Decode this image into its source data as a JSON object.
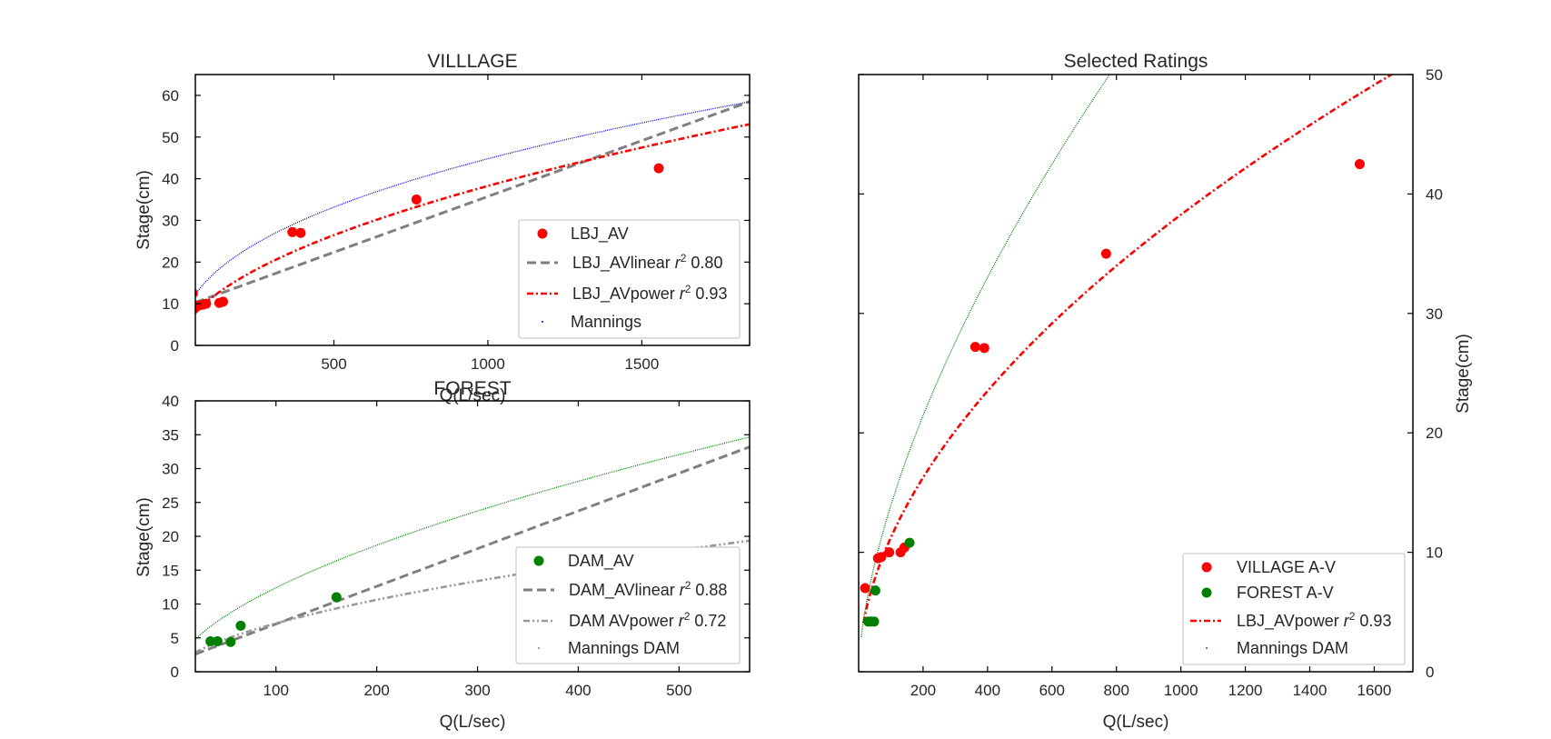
{
  "chart_data": [
    {
      "id": "village",
      "type": "scatter",
      "title": "VILLLAGE",
      "xlabel": "Q(L/sec)",
      "ylabel": "Stage(cm)",
      "xlim": [
        50,
        1850
      ],
      "ylim": [
        0,
        65
      ],
      "xticks": [
        500,
        1000,
        1500
      ],
      "yticks": [
        0,
        10,
        20,
        30,
        40,
        50,
        60
      ],
      "ticklabel_positions": {
        "x": "bottom",
        "y": "left"
      },
      "grid": false,
      "legend_position": "lower-right",
      "series": [
        {
          "name": "LBJ_AV",
          "kind": "points",
          "color": "#ff0000",
          "x": [
            42,
            55,
            62,
            75,
            85,
            128,
            140,
            365,
            392,
            768,
            1555
          ],
          "y": [
            12.5,
            9.5,
            9.6,
            9.8,
            10.0,
            10.2,
            10.5,
            27.2,
            27.0,
            35.0,
            42.5
          ]
        },
        {
          "name": "LBJ_AVlinear $r^2$ 0.80",
          "label_main": "LBJ_AVlinear ",
          "label_r": "r",
          "label_sup": "2",
          "label_value": " 0.80",
          "kind": "line",
          "style": "dashed",
          "color": "#7f7f7f",
          "x": [
            50,
            1850
          ],
          "y": [
            10.3,
            58.5
          ]
        },
        {
          "name": "LBJ_AVpower $r^2$ 0.93",
          "label_main": "LBJ_AVpower ",
          "label_r": "r",
          "label_sup": "2",
          "label_value": " 0.93",
          "kind": "curve",
          "style": "dashdot",
          "color": "#ff0000",
          "model": "power",
          "coef": 0.97,
          "exponent": 0.532,
          "x_range": [
            50,
            1850
          ]
        },
        {
          "name": "Mannings",
          "kind": "curve",
          "style": "dotted-dense",
          "color": "#0000ff",
          "model": "power",
          "coef": 2.25,
          "exponent": 0.433,
          "x_range": [
            50,
            1850
          ]
        }
      ]
    },
    {
      "id": "forest",
      "type": "scatter",
      "title": "FOREST",
      "xlabel": "Q(L/sec)",
      "ylabel": "Stage(cm)",
      "xlim": [
        20,
        570
      ],
      "ylim": [
        0,
        40
      ],
      "xticks": [
        100,
        200,
        300,
        400,
        500
      ],
      "yticks": [
        0,
        5,
        10,
        15,
        20,
        25,
        30,
        35,
        40
      ],
      "ticklabel_positions": {
        "x": "bottom",
        "y": "left"
      },
      "grid": false,
      "legend_position": "lower-right",
      "series": [
        {
          "name": "DAM_AV",
          "kind": "points",
          "color": "#008000",
          "x": [
            35,
            42,
            55,
            65,
            160
          ],
          "y": [
            4.5,
            4.5,
            4.4,
            6.8,
            11.0
          ]
        },
        {
          "name": "DAM_AVlinear $r^2$ 0.88",
          "label_main": "DAM_AVlinear ",
          "label_r": "r",
          "label_sup": "2",
          "label_value": " 0.88",
          "kind": "line",
          "style": "dashed",
          "color": "#7f7f7f",
          "x": [
            20,
            570
          ],
          "y": [
            2.6,
            33.2
          ]
        },
        {
          "name": "DAM AVpower $r^2$ 0.72",
          "label_main": "DAM AVpower ",
          "label_r": "r",
          "label_sup": "2",
          "label_value": " 0.72",
          "kind": "curve",
          "style": "dashdotdot",
          "color": "#999999",
          "model": "power",
          "coef": 0.51,
          "exponent": 0.573,
          "x_range": [
            20,
            570
          ]
        },
        {
          "name": "Mannings DAM",
          "kind": "curve",
          "style": "dotted-dense",
          "color": "#008000",
          "model": "power",
          "coef": 0.82,
          "exponent": 0.59,
          "x_range": [
            20,
            570
          ]
        }
      ]
    },
    {
      "id": "selected",
      "type": "scatter",
      "title": "Selected Ratings",
      "xlabel": "Q(L/sec)",
      "ylabel": "Stage(cm)",
      "xlim": [
        0,
        1720
      ],
      "ylim": [
        0,
        50
      ],
      "xticks": [
        200,
        400,
        600,
        800,
        1000,
        1200,
        1400,
        1600
      ],
      "yticks": [
        0,
        10,
        20,
        30,
        40,
        50
      ],
      "ticklabel_positions": {
        "x": "bottom",
        "y": "right"
      },
      "grid": false,
      "legend_position": "lower-right",
      "series": [
        {
          "name": "VILLAGE A-V",
          "kind": "points",
          "color": "#ff0000",
          "x": [
            20,
            60,
            70,
            95,
            130,
            142,
            362,
            390,
            768,
            1555
          ],
          "y": [
            7.0,
            9.5,
            9.6,
            10.0,
            10.0,
            10.4,
            27.2,
            27.1,
            35.0,
            42.5
          ]
        },
        {
          "name": "FOREST A-V",
          "kind": "points",
          "color": "#008000",
          "x": [
            30,
            38,
            48,
            52,
            158
          ],
          "y": [
            4.2,
            4.2,
            4.2,
            6.8,
            10.8
          ]
        },
        {
          "name": "LBJ_AVpower $r^2$ 0.93",
          "label_main": "LBJ_AVpower ",
          "label_r": "r",
          "label_sup": "2",
          "label_value": " 0.93",
          "kind": "curve",
          "style": "dashdot",
          "color": "#ff0000",
          "model": "power",
          "coef": 0.97,
          "exponent": 0.532,
          "x_range": [
            15,
            1700
          ]
        },
        {
          "name": "Mannings DAM",
          "kind": "curve",
          "style": "dotted-dense",
          "color": "#008000",
          "model": "power-segments",
          "color_alt": "#008000",
          "segments": [
            {
              "coef": 0.79,
              "exponent": 0.623,
              "x_range": [
                8,
                860
              ]
            },
            {
              "coef": 0.79,
              "exponent": 0.623,
              "x_range": [
                800,
                860
              ],
              "offset": 1.5
            },
            {
              "coef": 0.79,
              "exponent": 0.623,
              "x_range": [
                800,
                980
              ],
              "offset": 2.4
            }
          ]
        }
      ]
    }
  ]
}
